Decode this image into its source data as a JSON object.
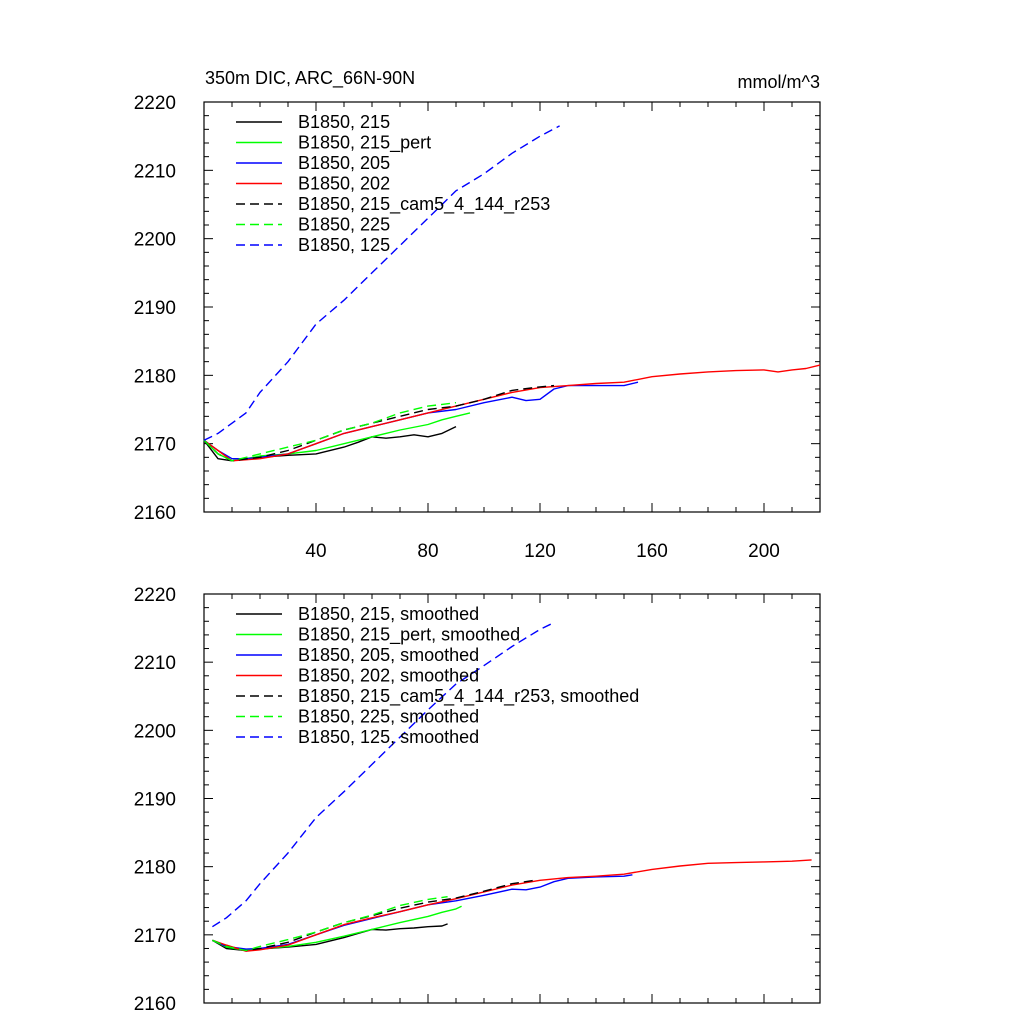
{
  "chart_data": [
    {
      "type": "line",
      "title": "350m DIC, ARC_66N-90N",
      "units": "mmol/m^3",
      "xlim": [
        0,
        220
      ],
      "ylim": [
        2160,
        2220
      ],
      "x_ticks": [
        40,
        80,
        120,
        160,
        200
      ],
      "x_tick_labels": [
        "40",
        "80",
        "120",
        "160",
        "200"
      ],
      "y_ticks": [
        2160,
        2170,
        2180,
        2190,
        2200,
        2210,
        2220
      ],
      "y_tick_labels": [
        "2160",
        "2170",
        "2180",
        "2190",
        "2200",
        "2210",
        "2220"
      ],
      "legend_position": "top-left",
      "series": [
        {
          "name": "B1850, 215",
          "color": "#000000",
          "dash": "solid",
          "x": [
            0,
            5,
            10,
            15,
            20,
            30,
            40,
            50,
            55,
            60,
            65,
            70,
            75,
            80,
            85,
            90
          ],
          "y": [
            2170.5,
            2167.8,
            2167.5,
            2167.8,
            2168.0,
            2168.3,
            2168.5,
            2169.5,
            2170.2,
            2171.0,
            2170.8,
            2171.0,
            2171.3,
            2171.0,
            2171.5,
            2172.5
          ]
        },
        {
          "name": "B1850, 215_pert",
          "color": "#00ff00",
          "dash": "solid",
          "x": [
            0,
            5,
            10,
            15,
            20,
            30,
            40,
            50,
            60,
            70,
            80,
            85,
            90,
            95
          ],
          "y": [
            2170.5,
            2168.5,
            2167.5,
            2167.8,
            2168.2,
            2168.5,
            2169.0,
            2170.0,
            2171.0,
            2172.0,
            2172.8,
            2173.5,
            2174.0,
            2174.5
          ]
        },
        {
          "name": "B1850, 205",
          "color": "#0000ff",
          "dash": "solid",
          "x": [
            0,
            5,
            10,
            15,
            20,
            30,
            40,
            50,
            60,
            70,
            80,
            90,
            100,
            110,
            115,
            120,
            125,
            130,
            140,
            150,
            155
          ],
          "y": [
            2170.5,
            2169.0,
            2167.8,
            2167.8,
            2168.0,
            2168.5,
            2170.0,
            2171.5,
            2172.5,
            2173.5,
            2174.5,
            2175.0,
            2176.0,
            2176.8,
            2176.3,
            2176.5,
            2178.0,
            2178.5,
            2178.5,
            2178.5,
            2179.0
          ]
        },
        {
          "name": "B1850, 202",
          "color": "#ff0000",
          "dash": "solid",
          "x": [
            0,
            5,
            10,
            20,
            30,
            40,
            50,
            60,
            70,
            80,
            90,
            100,
            110,
            120,
            130,
            140,
            150,
            160,
            170,
            180,
            190,
            200,
            205,
            210,
            215,
            220
          ],
          "y": [
            2170.5,
            2169.0,
            2167.5,
            2167.8,
            2168.5,
            2170.0,
            2171.5,
            2172.5,
            2173.5,
            2174.5,
            2175.5,
            2176.5,
            2177.5,
            2178.2,
            2178.5,
            2178.8,
            2179.0,
            2179.8,
            2180.2,
            2180.5,
            2180.7,
            2180.8,
            2180.5,
            2180.8,
            2181.0,
            2181.5
          ]
        },
        {
          "name": "B1850, 215_cam5_4_144_r253",
          "color": "#000000",
          "dash": "dashed",
          "x": [
            0,
            5,
            10,
            20,
            30,
            40,
            50,
            60,
            70,
            80,
            90,
            100,
            110,
            120,
            125
          ],
          "y": [
            2170.5,
            2168.5,
            2167.5,
            2168.0,
            2169.0,
            2170.5,
            2172.0,
            2173.0,
            2174.0,
            2175.0,
            2175.5,
            2176.5,
            2177.8,
            2178.3,
            2178.5
          ]
        },
        {
          "name": "B1850, 225",
          "color": "#00ff00",
          "dash": "dashed",
          "x": [
            0,
            5,
            10,
            20,
            30,
            40,
            50,
            60,
            70,
            80,
            90
          ],
          "y": [
            2170.5,
            2168.5,
            2167.5,
            2168.5,
            2169.5,
            2170.5,
            2172.0,
            2173.0,
            2174.5,
            2175.5,
            2176.0
          ]
        },
        {
          "name": "B1850, 125",
          "color": "#0000ff",
          "dash": "dashed",
          "x": [
            0,
            5,
            10,
            15,
            20,
            30,
            40,
            50,
            60,
            70,
            80,
            90,
            100,
            110,
            120,
            127
          ],
          "y": [
            2170.5,
            2171.5,
            2173.0,
            2174.5,
            2177.5,
            2182.0,
            2187.5,
            2191.0,
            2195.0,
            2199.0,
            2203.0,
            2207.0,
            2209.5,
            2212.5,
            2215.0,
            2216.5
          ]
        }
      ]
    },
    {
      "type": "line",
      "xlim": [
        0,
        220
      ],
      "ylim": [
        2160,
        2220
      ],
      "x_ticks": [
        40,
        80,
        120,
        160,
        200
      ],
      "y_ticks": [
        2160,
        2170,
        2180,
        2190,
        2200,
        2210,
        2220
      ],
      "y_tick_labels": [
        "2160",
        "2170",
        "2180",
        "2190",
        "2200",
        "2210",
        "2220"
      ],
      "legend_position": "top-left",
      "series": [
        {
          "name": "B1850, 215, smoothed",
          "color": "#000000",
          "dash": "solid",
          "x": [
            3,
            8,
            15,
            20,
            30,
            40,
            50,
            55,
            60,
            65,
            70,
            75,
            80,
            85,
            87
          ],
          "y": [
            2169.2,
            2168.0,
            2167.7,
            2167.9,
            2168.2,
            2168.6,
            2169.6,
            2170.2,
            2170.8,
            2170.7,
            2170.9,
            2171.0,
            2171.2,
            2171.3,
            2171.6
          ]
        },
        {
          "name": "B1850, 215_pert, smoothed",
          "color": "#00ff00",
          "dash": "solid",
          "x": [
            3,
            8,
            15,
            20,
            30,
            40,
            50,
            60,
            70,
            80,
            85,
            90,
            92
          ],
          "y": [
            2169.2,
            2168.2,
            2167.7,
            2167.9,
            2168.3,
            2168.9,
            2169.8,
            2170.8,
            2171.8,
            2172.7,
            2173.3,
            2173.8,
            2174.2
          ]
        },
        {
          "name": "B1850, 205, smoothed",
          "color": "#0000ff",
          "dash": "solid",
          "x": [
            3,
            8,
            15,
            20,
            30,
            40,
            50,
            60,
            70,
            80,
            90,
            100,
            110,
            115,
            120,
            125,
            130,
            140,
            150,
            153
          ],
          "y": [
            2169.2,
            2168.3,
            2167.9,
            2168.0,
            2168.6,
            2170.0,
            2171.4,
            2172.4,
            2173.4,
            2174.4,
            2175.0,
            2175.8,
            2176.7,
            2176.6,
            2177.0,
            2177.8,
            2178.3,
            2178.5,
            2178.6,
            2178.8
          ]
        },
        {
          "name": "B1850, 202, smoothed",
          "color": "#ff0000",
          "dash": "solid",
          "x": [
            3,
            8,
            15,
            20,
            30,
            40,
            50,
            60,
            70,
            80,
            90,
            100,
            110,
            120,
            130,
            140,
            150,
            160,
            170,
            180,
            190,
            200,
            210,
            217
          ],
          "y": [
            2169.2,
            2168.5,
            2167.6,
            2167.8,
            2168.5,
            2170.0,
            2171.5,
            2172.5,
            2173.4,
            2174.4,
            2175.3,
            2176.3,
            2177.3,
            2178.0,
            2178.4,
            2178.6,
            2178.9,
            2179.6,
            2180.1,
            2180.5,
            2180.6,
            2180.7,
            2180.8,
            2181.0
          ]
        },
        {
          "name": "B1850, 215_cam5_4_144_r253, smoothed",
          "color": "#000000",
          "dash": "dashed",
          "x": [
            3,
            8,
            15,
            20,
            30,
            40,
            50,
            60,
            70,
            80,
            90,
            100,
            110,
            118
          ],
          "y": [
            2169.2,
            2168.3,
            2167.7,
            2168.0,
            2168.9,
            2170.4,
            2171.8,
            2172.8,
            2173.9,
            2174.8,
            2175.4,
            2176.4,
            2177.5,
            2178.0
          ]
        },
        {
          "name": "B1850, 225, smoothed",
          "color": "#00ff00",
          "dash": "dashed",
          "x": [
            3,
            8,
            15,
            20,
            30,
            40,
            50,
            60,
            70,
            80,
            87
          ],
          "y": [
            2169.2,
            2168.3,
            2167.7,
            2168.3,
            2169.3,
            2170.4,
            2171.8,
            2172.9,
            2174.3,
            2175.2,
            2175.6
          ]
        },
        {
          "name": "B1850, 125, smoothed",
          "color": "#0000ff",
          "dash": "dashed",
          "x": [
            3,
            8,
            15,
            20,
            30,
            40,
            50,
            60,
            70,
            80,
            90,
            100,
            110,
            120,
            125
          ],
          "y": [
            2171.2,
            2172.5,
            2175.0,
            2177.5,
            2182.0,
            2187.2,
            2191.0,
            2195.0,
            2199.0,
            2203.0,
            2206.8,
            2209.5,
            2212.3,
            2214.8,
            2215.8
          ]
        }
      ]
    }
  ]
}
